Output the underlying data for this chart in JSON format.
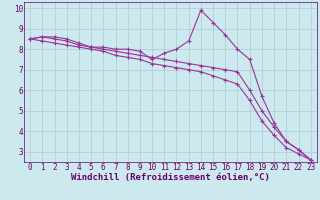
{
  "x": [
    0,
    1,
    2,
    3,
    4,
    5,
    6,
    7,
    8,
    9,
    10,
    11,
    12,
    13,
    14,
    15,
    16,
    17,
    18,
    19,
    20,
    21,
    22,
    23
  ],
  "line1": [
    8.5,
    8.6,
    8.6,
    8.5,
    8.3,
    8.1,
    8.1,
    8.0,
    8.0,
    7.9,
    7.5,
    7.8,
    8.0,
    8.4,
    9.9,
    9.3,
    8.7,
    8.0,
    7.5,
    5.7,
    4.4,
    3.5,
    3.1,
    2.6
  ],
  "line2": [
    8.5,
    8.6,
    8.5,
    8.4,
    8.2,
    8.1,
    8.0,
    7.9,
    7.8,
    7.7,
    7.6,
    7.5,
    7.4,
    7.3,
    7.2,
    7.1,
    7.0,
    6.9,
    6.0,
    5.0,
    4.2,
    3.5,
    3.1,
    2.6
  ],
  "line3": [
    8.5,
    8.4,
    8.3,
    8.2,
    8.1,
    8.0,
    7.9,
    7.7,
    7.6,
    7.5,
    7.3,
    7.2,
    7.1,
    7.0,
    6.9,
    6.7,
    6.5,
    6.3,
    5.5,
    4.5,
    3.8,
    3.2,
    2.9,
    2.6
  ],
  "line_color": "#993399",
  "bg_color": "#cce9f0",
  "grid_color": "#aacccc",
  "xlabel": "Windchill (Refroidissement éolien,°C)",
  "xlim": [
    -0.5,
    23.5
  ],
  "ylim": [
    2.5,
    10.3
  ],
  "yticks": [
    3,
    4,
    5,
    6,
    7,
    8,
    9,
    10
  ],
  "xticks": [
    0,
    1,
    2,
    3,
    4,
    5,
    6,
    7,
    8,
    9,
    10,
    11,
    12,
    13,
    14,
    15,
    16,
    17,
    18,
    19,
    20,
    21,
    22,
    23
  ],
  "marker": "+",
  "markersize": 3,
  "linewidth": 0.8,
  "xlabel_fontsize": 6.5,
  "tick_fontsize": 5.5,
  "label_color": "#660066"
}
